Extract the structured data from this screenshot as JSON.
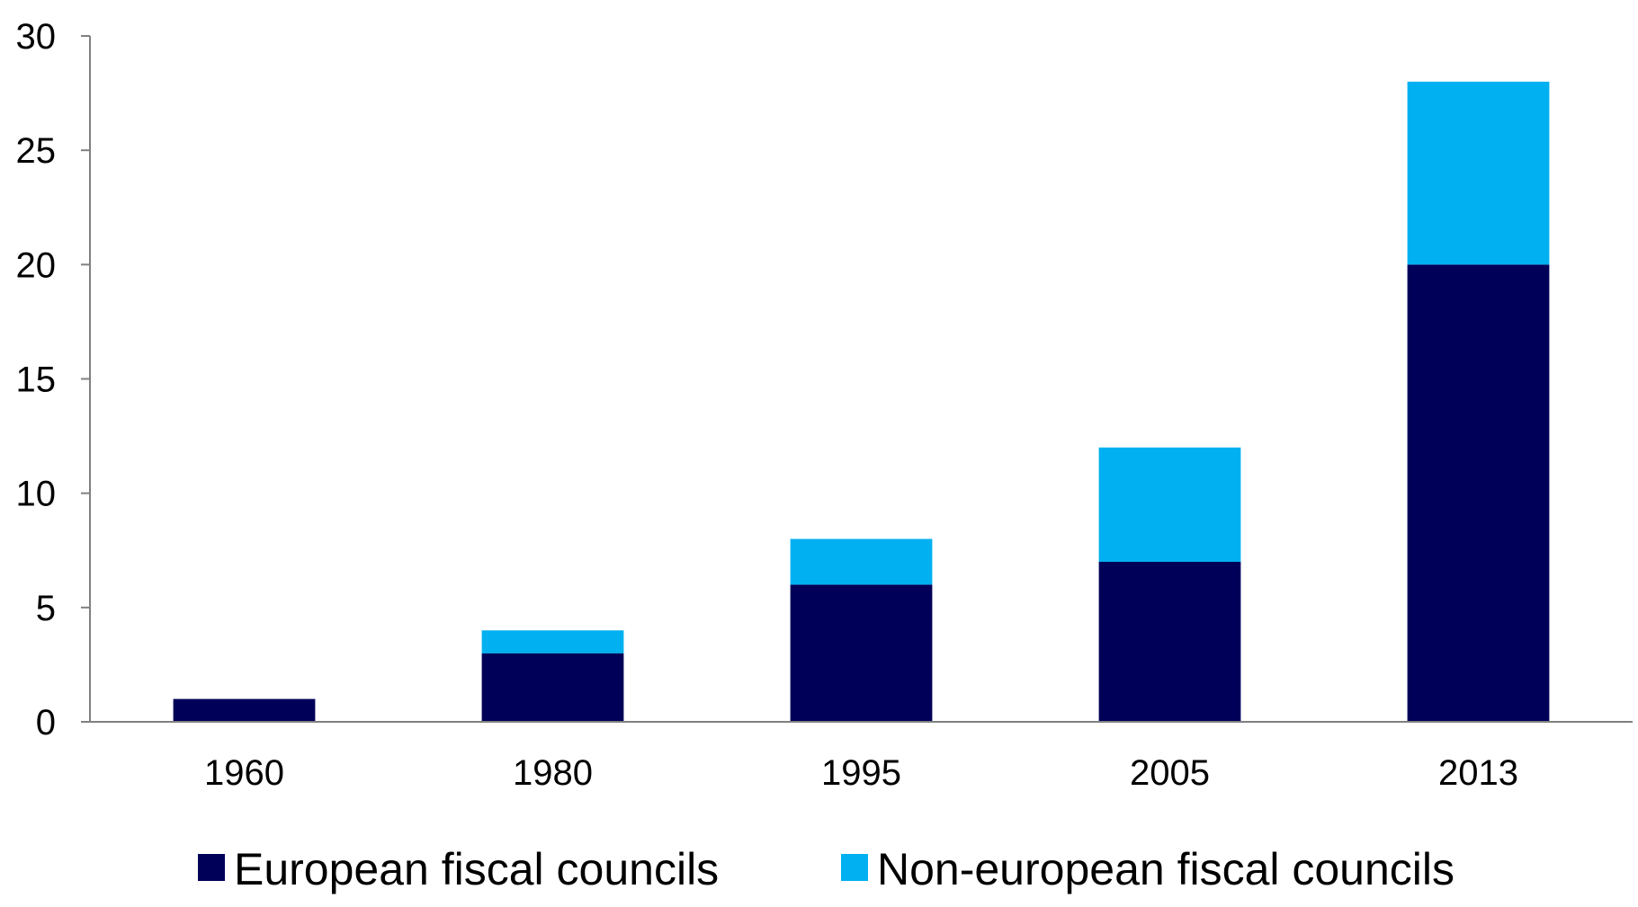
{
  "chart_data": {
    "type": "bar",
    "stacked": true,
    "categories": [
      "1960",
      "1980",
      "1995",
      "2005",
      "2013"
    ],
    "series": [
      {
        "name": "European fiscal councils",
        "values": [
          1,
          3,
          6,
          7,
          20
        ],
        "color": "#000058"
      },
      {
        "name": "Non-european fiscal councils",
        "values": [
          0,
          1,
          2,
          5,
          8
        ],
        "color": "#00b0f0"
      }
    ],
    "title": "",
    "xlabel": "",
    "ylabel": "",
    "ylim": [
      0,
      30
    ],
    "yticks": [
      0,
      5,
      10,
      15,
      20,
      25,
      30
    ],
    "grid": false,
    "legend_position": "bottom"
  }
}
